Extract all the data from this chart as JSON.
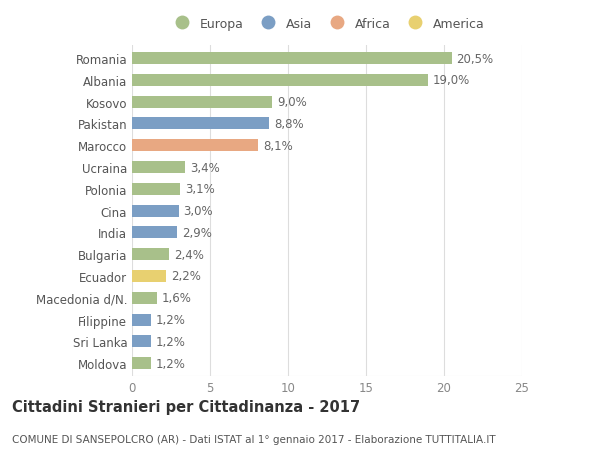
{
  "countries": [
    "Romania",
    "Albania",
    "Kosovo",
    "Pakistan",
    "Marocco",
    "Ucraina",
    "Polonia",
    "Cina",
    "India",
    "Bulgaria",
    "Ecuador",
    "Macedonia d/N.",
    "Filippine",
    "Sri Lanka",
    "Moldova"
  ],
  "values": [
    20.5,
    19.0,
    9.0,
    8.8,
    8.1,
    3.4,
    3.1,
    3.0,
    2.9,
    2.4,
    2.2,
    1.6,
    1.2,
    1.2,
    1.2
  ],
  "labels": [
    "20,5%",
    "19,0%",
    "9,0%",
    "8,8%",
    "8,1%",
    "3,4%",
    "3,1%",
    "3,0%",
    "2,9%",
    "2,4%",
    "2,2%",
    "1,6%",
    "1,2%",
    "1,2%",
    "1,2%"
  ],
  "continents": [
    "Europa",
    "Europa",
    "Europa",
    "Asia",
    "Africa",
    "Europa",
    "Europa",
    "Asia",
    "Asia",
    "Europa",
    "America",
    "Europa",
    "Asia",
    "Asia",
    "Europa"
  ],
  "continent_colors": {
    "Europa": "#a8c08a",
    "Asia": "#7b9ec4",
    "Africa": "#e8a882",
    "America": "#e8d070"
  },
  "legend_order": [
    "Europa",
    "Asia",
    "Africa",
    "America"
  ],
  "background_color": "#ffffff",
  "title": "Cittadini Stranieri per Cittadinanza - 2017",
  "subtitle": "COMUNE DI SANSEPOLCRO (AR) - Dati ISTAT al 1° gennaio 2017 - Elaborazione TUTTITALIA.IT",
  "xlim": [
    0,
    25
  ],
  "xticks": [
    0,
    5,
    10,
    15,
    20,
    25
  ],
  "grid_color": "#dddddd",
  "bar_height": 0.55,
  "label_fontsize": 8.5,
  "tick_fontsize": 8.5,
  "title_fontsize": 10.5,
  "subtitle_fontsize": 7.5
}
